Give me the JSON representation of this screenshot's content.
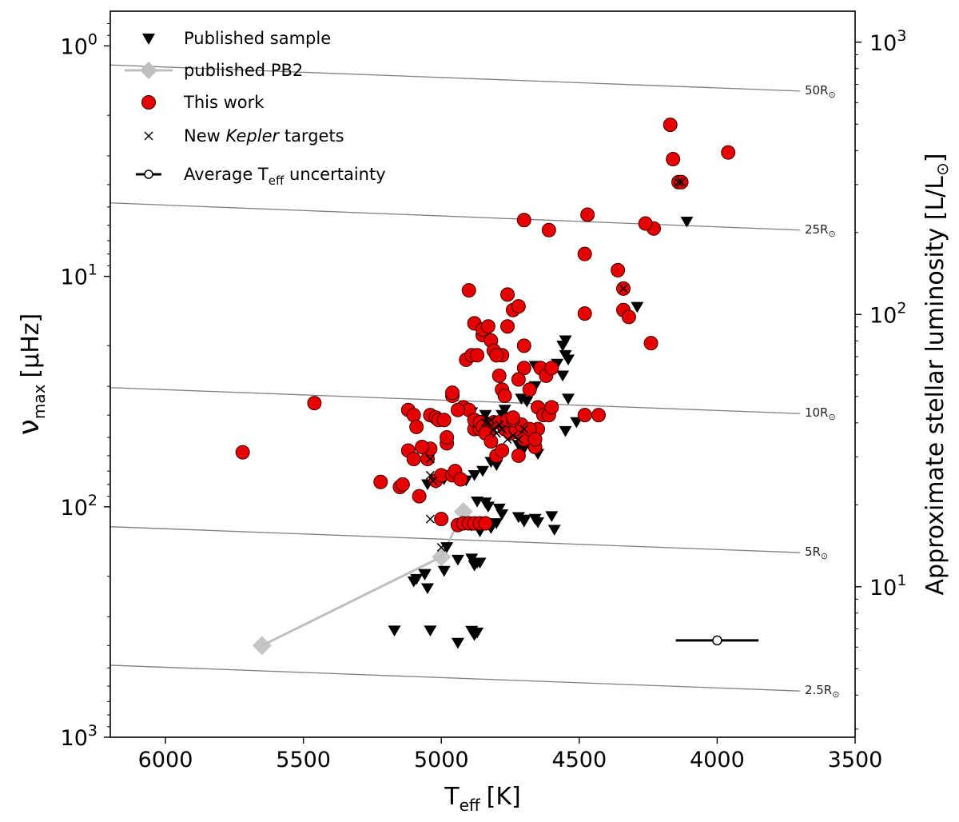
{
  "chart_data": {
    "type": "scatter",
    "title": "",
    "xlabel": "T",
    "xlabel_sub": "eff",
    "xlabel_unit": "[K]",
    "ylabel_left": "ν",
    "ylabel_left_sub": "max",
    "ylabel_left_unit": "[μHz]",
    "ylabel_right": "Approximate stellar luminosity [L/L",
    "ylabel_right_end": "]",
    "xlim": [
      6200,
      3500
    ],
    "ylim_left": [
      0.707,
      1000
    ],
    "ylim_left_inverted": true,
    "ylim_right": [
      2.8,
      1300
    ],
    "x_ticks": [
      6000,
      5500,
      5000,
      4500,
      4000,
      3500
    ],
    "x_tick_labels": [
      "6000",
      "5500",
      "5000",
      "4500",
      "4000",
      "3500"
    ],
    "y_left_ticks": [
      {
        "value": 1,
        "base": "10",
        "exp": "0"
      },
      {
        "value": 10,
        "base": "10",
        "exp": "1"
      },
      {
        "value": 100,
        "base": "10",
        "exp": "2"
      },
      {
        "value": 1000,
        "base": "10",
        "exp": "3"
      }
    ],
    "y_right_ticks": [
      {
        "value": 10,
        "base": "10",
        "exp": "1"
      },
      {
        "value": 100,
        "base": "10",
        "exp": "2"
      },
      {
        "value": 1000,
        "base": "10",
        "exp": "3"
      }
    ],
    "radius_lines": [
      {
        "label": "50R",
        "start": [
          6200,
          1.21
        ],
        "end": [
          3700,
          1.57
        ]
      },
      {
        "label": "25R",
        "start": [
          6200,
          4.8
        ],
        "end": [
          3700,
          6.3
        ]
      },
      {
        "label": "10R",
        "start": [
          6200,
          30.4
        ],
        "end": [
          3700,
          39.4
        ]
      },
      {
        "label": "5R",
        "start": [
          6200,
          122
        ],
        "end": [
          3700,
          158
        ]
      },
      {
        "label": "2.5R",
        "start": [
          6200,
          487
        ],
        "end": [
          3700,
          630
        ]
      }
    ],
    "sun_symbol": "⊙",
    "legend": {
      "position": "top-left",
      "entries": [
        {
          "label": "Published sample",
          "marker": "triangle-down"
        },
        {
          "label": "published PB2",
          "marker": "diamond-line"
        },
        {
          "label": "This work",
          "marker": "circle-red"
        },
        {
          "label_pre": "New ",
          "label_italic": "Kepler",
          "label_post": " targets",
          "marker": "x"
        },
        {
          "label_pre": "Average T",
          "label_sub": "eff",
          "label_post": " uncertainty",
          "marker": "errorbar"
        }
      ]
    },
    "error_bar": {
      "x": 4000,
      "y": 380,
      "xerr_low": 150,
      "xerr_high": 150
    },
    "series": [
      {
        "name": "published PB2",
        "marker": "diamond",
        "color": "#bfbfbf",
        "x": [
          5650,
          5000,
          4920
        ],
        "y": [
          400,
          165,
          105
        ]
      },
      {
        "name": "Published sample",
        "marker": "triangle-down",
        "color": "#000000",
        "x": [
          4110,
          4290,
          4550,
          4560,
          4550,
          4540,
          4660,
          4560,
          4580,
          4540,
          4510,
          4550,
          4660,
          4710,
          4690,
          4600,
          4770,
          4840,
          4890,
          4860,
          4820,
          4790,
          4780,
          4750,
          4720,
          4700,
          4650,
          4820,
          4800,
          4850,
          4880,
          4960,
          4990,
          5020,
          5050,
          4910,
          4870,
          4840,
          4830,
          4790,
          4720,
          4700,
          4650,
          4590,
          4820,
          4800,
          4890,
          4870,
          4860,
          4880,
          5090,
          5100,
          5050,
          5060,
          4940,
          4990,
          5060,
          5170,
          5040,
          4890,
          4870,
          4880,
          4940,
          4980,
          4900,
          4890,
          4860,
          4780,
          4720,
          4660,
          4700,
          4600
        ],
        "y": [
          5.8,
          13.6,
          19,
          20,
          22,
          23,
          24.5,
          27,
          24,
          34,
          43,
          47,
          30,
          34,
          35,
          37,
          38,
          40,
          39,
          42,
          43,
          44,
          40,
          41,
          54,
          56,
          59,
          64,
          66,
          70,
          73,
          74,
          76,
          79,
          80,
          77,
          95,
          96,
          100,
          102,
          111,
          116,
          117,
          126,
          124,
          118,
          168,
          175,
          175,
          180,
          206,
          211,
          226,
          197,
          170,
          190,
          196,
          345,
          345,
          346,
          352,
          361,
          390,
          150,
          117,
          121,
          128,
          108,
          111,
          113,
          114,
          110
        ]
      },
      {
        "name": "This work",
        "marker": "circle",
        "color": "#e60000",
        "x": [
          5720,
          5460,
          5220,
          5150,
          5140,
          5120,
          5100,
          5080,
          5050,
          5040,
          5020,
          5000,
          5000,
          4980,
          4960,
          4960,
          4940,
          4920,
          4900,
          4880,
          4850,
          4820,
          4800,
          4780,
          4760,
          4740,
          4720,
          4700,
          4680,
          4650,
          4640,
          4620,
          4600,
          4880,
          4860,
          4840,
          4820,
          4830,
          4810,
          4790,
          4770,
          4750,
          4730,
          4710,
          4690,
          4660,
          4650,
          4630,
          4610,
          4600,
          4900,
          4880,
          4860,
          4850,
          4840,
          4820,
          4800,
          4780,
          4760,
          4740,
          4720,
          4700,
          4680,
          4660,
          4940,
          4910,
          4890,
          4870,
          4850,
          4830,
          4810,
          4800,
          4790,
          4780,
          4770,
          4760,
          4740,
          4720,
          4700,
          5120,
          5100,
          5090,
          5070,
          5040,
          5020,
          5010,
          4990,
          4980,
          4960,
          4950,
          4930,
          4920,
          4900,
          4880,
          4860,
          4840,
          4480,
          4430,
          4480,
          4360,
          4340,
          4320,
          4240,
          4230,
          4480,
          4470,
          4700,
          4610,
          4260,
          4170,
          4160,
          3960,
          4140,
          4130,
          4340
        ],
        "y": [
          58,
          35.5,
          78,
          82,
          80,
          57,
          62,
          90,
          62,
          56,
          77,
          73,
          113,
          53,
          33,
          32,
          120,
          37,
          11.5,
          16,
          18,
          19,
          22,
          22,
          16.5,
          14,
          13.5,
          25,
          31,
          37,
          25,
          27,
          25,
          46,
          46,
          46,
          44,
          48,
          43,
          43,
          46,
          48,
          46,
          44,
          49,
          55,
          46,
          40,
          40,
          37,
          38,
          42,
          43,
          45,
          48,
          52,
          60,
          57,
          42,
          42,
          60,
          51,
          46,
          51,
          38,
          23,
          22,
          22,
          17,
          16.5,
          21,
          22,
          27,
          31,
          33,
          12,
          41,
          28,
          20,
          38,
          40,
          45,
          55,
          40,
          41,
          42,
          42,
          50,
          73,
          70,
          76,
          118,
          118,
          118,
          118,
          118,
          40,
          40,
          14.5,
          9.4,
          14,
          15,
          19.5,
          6.2,
          8,
          5.4,
          5.7,
          6.3,
          5.9,
          2.2,
          3.1,
          2.9,
          3.9,
          3.9,
          11.3
        ],
        "new_kepler_x": [
          4140,
          4130,
          4340,
          5040,
          5030,
          5040,
          4840,
          4830,
          4820,
          4810,
          4800,
          4790,
          4780,
          4760,
          4740,
          4720,
          4700,
          5040,
          5000
        ],
        "new_kepler_y": [
          3.9,
          3.9,
          11.3,
          62,
          77,
          73,
          43,
          43,
          42,
          46,
          48,
          44,
          46,
          51,
          49,
          51,
          46,
          113,
          150
        ]
      }
    ]
  }
}
